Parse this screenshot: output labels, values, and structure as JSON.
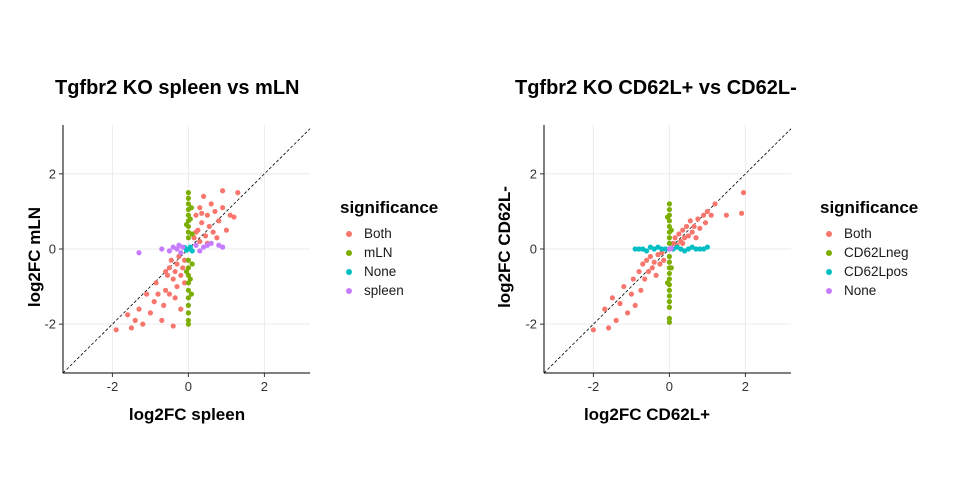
{
  "chart_data": [
    {
      "type": "scatter",
      "title": "Tgfbr2 KO spleen vs mLN",
      "xlabel": "log2FC spleen",
      "ylabel": "log2FC mLN",
      "xlim": [
        -3.3,
        3.2
      ],
      "ylim": [
        -3.3,
        3.3
      ],
      "xticks": [
        -2,
        0,
        2
      ],
      "yticks": [
        -2,
        0,
        2
      ],
      "xtick_labels": [
        "-2",
        "0",
        "2"
      ],
      "ytick_labels": [
        "-2",
        "0",
        "2"
      ],
      "grid": true,
      "diagonal_line": "y = x, dashed",
      "legend_title": "significance",
      "legend_position": "right",
      "series": [
        {
          "name": "Both",
          "color": "#F8766D",
          "points": [
            [
              -1.9,
              -2.15
            ],
            [
              -1.6,
              -1.75
            ],
            [
              -1.5,
              -2.1
            ],
            [
              -1.4,
              -1.9
            ],
            [
              -1.3,
              -1.6
            ],
            [
              -1.2,
              -2.0
            ],
            [
              -1.1,
              -1.2
            ],
            [
              -1.0,
              -1.7
            ],
            [
              -0.9,
              -1.4
            ],
            [
              -0.85,
              -0.9
            ],
            [
              -0.8,
              -1.2
            ],
            [
              -0.7,
              -1.9
            ],
            [
              -0.65,
              -1.5
            ],
            [
              -0.6,
              -1.1
            ],
            [
              -0.55,
              -0.7
            ],
            [
              -0.5,
              -0.5
            ],
            [
              -0.5,
              -1.2
            ],
            [
              -0.45,
              -0.3
            ],
            [
              -0.4,
              -0.8
            ],
            [
              -0.4,
              -2.05
            ],
            [
              -0.35,
              -0.6
            ],
            [
              -0.3,
              -1.0
            ],
            [
              -0.3,
              -0.4
            ],
            [
              -0.25,
              -0.2
            ],
            [
              -0.2,
              -0.7
            ],
            [
              -0.2,
              -1.6
            ],
            [
              -0.15,
              -0.5
            ],
            [
              -0.1,
              -0.9
            ],
            [
              -0.1,
              -0.3
            ],
            [
              -0.35,
              -1.3
            ],
            [
              -0.6,
              -0.6
            ],
            [
              0.15,
              0.3
            ],
            [
              0.2,
              0.9
            ],
            [
              0.25,
              0.5
            ],
            [
              0.3,
              1.1
            ],
            [
              0.3,
              0.2
            ],
            [
              0.35,
              0.7
            ],
            [
              0.4,
              1.4
            ],
            [
              0.45,
              0.35
            ],
            [
              0.5,
              0.9
            ],
            [
              0.55,
              0.6
            ],
            [
              0.6,
              1.2
            ],
            [
              0.65,
              0.45
            ],
            [
              0.7,
              1.0
            ],
            [
              0.75,
              0.3
            ],
            [
              0.8,
              0.75
            ],
            [
              0.9,
              1.1
            ],
            [
              1.0,
              0.5
            ],
            [
              1.1,
              0.9
            ],
            [
              1.2,
              0.85
            ],
            [
              1.3,
              1.5
            ],
            [
              0.9,
              1.55
            ],
            [
              0.5,
              0.15
            ],
            [
              0.2,
              0.45
            ],
            [
              0.35,
              0.95
            ]
          ]
        },
        {
          "name": "mLN",
          "color": "#7CAE00",
          "points": [
            [
              0.0,
              1.5
            ],
            [
              0.0,
              1.35
            ],
            [
              0.0,
              1.2
            ],
            [
              0.0,
              1.05
            ],
            [
              0.0,
              0.9
            ],
            [
              0.0,
              0.75
            ],
            [
              0.0,
              0.6
            ],
            [
              0.0,
              0.45
            ],
            [
              0.0,
              0.3
            ],
            [
              0.0,
              -0.3
            ],
            [
              0.0,
              -0.5
            ],
            [
              0.0,
              -0.7
            ],
            [
              0.0,
              -0.9
            ],
            [
              0.0,
              -1.1
            ],
            [
              0.0,
              -1.3
            ],
            [
              0.0,
              -1.5
            ],
            [
              0.0,
              -1.7
            ],
            [
              0.0,
              -1.9
            ],
            [
              0.0,
              -2.0
            ],
            [
              0.05,
              0.8
            ],
            [
              0.05,
              -0.8
            ],
            [
              0.1,
              0.4
            ],
            [
              0.1,
              -0.4
            ],
            [
              -0.05,
              0.65
            ],
            [
              -0.05,
              -0.6
            ],
            [
              0.08,
              1.1
            ],
            [
              0.08,
              -1.2
            ]
          ]
        },
        {
          "name": "None",
          "color": "#00BFC4",
          "points": [
            [
              0.0,
              0.0
            ],
            [
              0.05,
              0.05
            ],
            [
              -0.05,
              -0.03
            ],
            [
              0.1,
              -0.05
            ],
            [
              -0.1,
              0.04
            ]
          ]
        },
        {
          "name": "spleen",
          "color": "#C77CFF",
          "points": [
            [
              -1.3,
              -0.1
            ],
            [
              -0.7,
              0.0
            ],
            [
              -0.5,
              -0.05
            ],
            [
              -0.4,
              0.05
            ],
            [
              -0.3,
              0.0
            ],
            [
              -0.25,
              0.1
            ],
            [
              -0.2,
              -0.1
            ],
            [
              -0.15,
              0.05
            ],
            [
              0.2,
              0.1
            ],
            [
              0.3,
              -0.05
            ],
            [
              0.4,
              0.05
            ],
            [
              0.5,
              0.1
            ],
            [
              0.6,
              0.15
            ],
            [
              0.8,
              0.1
            ],
            [
              0.9,
              0.05
            ]
          ]
        }
      ]
    },
    {
      "type": "scatter",
      "title": "Tgfbr2 KO CD62L+ vs CD62L-",
      "xlabel": "log2FC CD62L+",
      "ylabel": "log2FC CD62L-",
      "xlim": [
        -3.3,
        3.2
      ],
      "ylim": [
        -3.3,
        3.3
      ],
      "xticks": [
        -2,
        0,
        2
      ],
      "yticks": [
        -2,
        0,
        2
      ],
      "xtick_labels": [
        "-2",
        "0",
        "2"
      ],
      "ytick_labels": [
        "-2",
        "0",
        "2"
      ],
      "grid": true,
      "diagonal_line": "y = x, dashed",
      "legend_title": "significance",
      "legend_position": "right",
      "series": [
        {
          "name": "Both",
          "color": "#F8766D",
          "points": [
            [
              -2.0,
              -2.15
            ],
            [
              -1.7,
              -1.6
            ],
            [
              -1.6,
              -2.1
            ],
            [
              -1.5,
              -1.3
            ],
            [
              -1.4,
              -1.9
            ],
            [
              -1.3,
              -1.45
            ],
            [
              -1.2,
              -1.0
            ],
            [
              -1.1,
              -1.7
            ],
            [
              -1.0,
              -1.2
            ],
            [
              -0.95,
              -0.8
            ],
            [
              -0.9,
              -1.5
            ],
            [
              -0.8,
              -0.6
            ],
            [
              -0.75,
              -1.1
            ],
            [
              -0.7,
              -0.4
            ],
            [
              -0.65,
              -0.8
            ],
            [
              -0.6,
              -0.3
            ],
            [
              -0.55,
              -0.6
            ],
            [
              -0.5,
              -0.2
            ],
            [
              -0.45,
              -0.5
            ],
            [
              -0.4,
              -0.35
            ],
            [
              -0.35,
              -0.7
            ],
            [
              -0.3,
              -0.15
            ],
            [
              -0.25,
              -0.4
            ],
            [
              -0.2,
              -0.1
            ],
            [
              -0.15,
              -0.3
            ],
            [
              0.1,
              0.15
            ],
            [
              0.15,
              0.3
            ],
            [
              0.2,
              0.1
            ],
            [
              0.25,
              0.4
            ],
            [
              0.3,
              0.2
            ],
            [
              0.35,
              0.5
            ],
            [
              0.4,
              0.3
            ],
            [
              0.45,
              0.6
            ],
            [
              0.5,
              0.35
            ],
            [
              0.55,
              0.75
            ],
            [
              0.6,
              0.45
            ],
            [
              0.65,
              0.6
            ],
            [
              0.7,
              0.3
            ],
            [
              0.75,
              0.8
            ],
            [
              0.8,
              0.55
            ],
            [
              0.9,
              0.9
            ],
            [
              1.0,
              1.0
            ],
            [
              1.1,
              0.9
            ],
            [
              1.2,
              1.2
            ],
            [
              1.5,
              0.9
            ],
            [
              1.9,
              0.95
            ],
            [
              1.95,
              1.5
            ],
            [
              0.95,
              0.7
            ],
            [
              0.35,
              0.15
            ]
          ]
        },
        {
          "name": "CD62Lneg",
          "color": "#7CAE00",
          "points": [
            [
              0.0,
              1.2
            ],
            [
              0.0,
              1.05
            ],
            [
              0.0,
              0.9
            ],
            [
              0.0,
              0.75
            ],
            [
              0.0,
              0.6
            ],
            [
              0.0,
              0.45
            ],
            [
              0.0,
              0.3
            ],
            [
              0.0,
              0.15
            ],
            [
              0.0,
              -0.2
            ],
            [
              0.0,
              -0.35
            ],
            [
              0.0,
              -0.5
            ],
            [
              0.0,
              -0.65
            ],
            [
              0.0,
              -0.8
            ],
            [
              0.0,
              -0.95
            ],
            [
              0.0,
              -1.1
            ],
            [
              0.0,
              -1.25
            ],
            [
              0.0,
              -1.4
            ],
            [
              0.0,
              -1.55
            ],
            [
              0.0,
              -1.85
            ],
            [
              0.0,
              -1.95
            ],
            [
              0.05,
              0.5
            ],
            [
              0.05,
              -0.5
            ],
            [
              -0.05,
              0.85
            ],
            [
              -0.05,
              -0.9
            ]
          ]
        },
        {
          "name": "CD62Lpos",
          "color": "#00BFC4",
          "points": [
            [
              -0.9,
              0.0
            ],
            [
              -0.8,
              0.0
            ],
            [
              -0.7,
              0.0
            ],
            [
              -0.6,
              -0.05
            ],
            [
              -0.5,
              0.05
            ],
            [
              -0.4,
              0.0
            ],
            [
              -0.3,
              0.05
            ],
            [
              -0.2,
              0.0
            ],
            [
              -0.1,
              0.0
            ],
            [
              0.1,
              0.0
            ],
            [
              0.2,
              0.05
            ],
            [
              0.3,
              0.0
            ],
            [
              0.4,
              -0.05
            ],
            [
              0.5,
              0.0
            ],
            [
              0.6,
              0.05
            ],
            [
              0.7,
              0.0
            ],
            [
              0.8,
              0.0
            ],
            [
              0.9,
              0.0
            ],
            [
              1.0,
              0.05
            ]
          ]
        },
        {
          "name": "None",
          "color": "#C77CFF",
          "points": [
            [
              0.0,
              0.0
            ],
            [
              0.05,
              0.02
            ]
          ]
        }
      ]
    }
  ]
}
